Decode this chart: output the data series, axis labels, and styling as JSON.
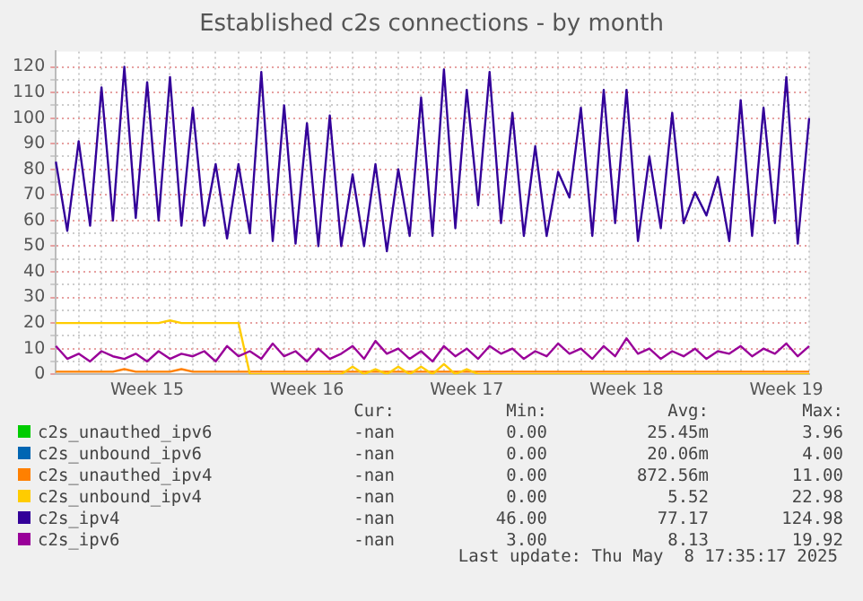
{
  "chart_data": {
    "type": "line",
    "title": "Established c2s connections - by month",
    "categories": [
      null,
      null,
      null,
      null,
      null,
      null,
      null,
      null,
      "Week 15",
      null,
      null,
      null,
      null,
      null,
      null,
      null,
      null,
      null,
      null,
      null,
      null,
      null,
      "Week 16",
      null,
      null,
      null,
      null,
      null,
      null,
      null,
      null,
      null,
      null,
      null,
      null,
      null,
      "Week 17",
      null,
      null,
      null,
      null,
      null,
      null,
      null,
      null,
      null,
      null,
      null,
      null,
      null,
      "Week 18",
      null,
      null,
      null,
      null,
      null,
      null,
      null,
      null,
      null,
      null,
      null,
      null,
      null,
      "Week 19",
      null,
      null
    ],
    "series": [
      {
        "name": "c2s_unauthed_ipv6",
        "color": "#00cc00",
        "values": [
          null,
          null,
          null,
          null,
          null,
          null,
          null,
          null,
          null,
          null,
          null,
          null,
          null,
          null,
          null,
          null,
          null,
          null,
          null,
          null,
          null,
          null,
          null,
          null,
          null,
          null,
          null,
          null,
          null,
          null,
          null,
          null,
          null,
          null,
          null,
          null,
          null,
          null,
          null,
          null,
          null,
          null,
          null,
          null,
          null,
          null,
          null,
          null,
          null,
          null,
          null,
          null,
          null,
          null,
          null,
          null,
          null,
          null,
          null,
          null,
          null,
          null,
          null,
          null,
          null,
          null,
          null
        ]
      },
      {
        "name": "c2s_unbound_ipv6",
        "color": "#0066b3",
        "values": [
          null,
          null,
          null,
          null,
          null,
          null,
          null,
          null,
          null,
          null,
          null,
          null,
          null,
          null,
          null,
          null,
          null,
          null,
          null,
          null,
          null,
          null,
          null,
          null,
          null,
          null,
          null,
          null,
          null,
          null,
          null,
          null,
          null,
          null,
          null,
          null,
          null,
          null,
          null,
          null,
          null,
          null,
          null,
          null,
          null,
          null,
          null,
          null,
          null,
          null,
          null,
          null,
          null,
          null,
          null,
          null,
          null,
          null,
          null,
          null,
          null,
          null,
          null,
          null,
          null,
          null,
          null
        ]
      },
      {
        "name": "c2s_unauthed_ipv4",
        "color": "#ff8000",
        "values": [
          1,
          1,
          1,
          1,
          1,
          1,
          2,
          1,
          1,
          1,
          1,
          2,
          1,
          1,
          1,
          1,
          1,
          1,
          1,
          1,
          1,
          1,
          1,
          1,
          1,
          1,
          1,
          1,
          1,
          1,
          1,
          1,
          1,
          1,
          1,
          1,
          1,
          1,
          1,
          1,
          1,
          1,
          1,
          1,
          1,
          1,
          1,
          1,
          1,
          1,
          1,
          1,
          1,
          1,
          1,
          1,
          1,
          1,
          1,
          1,
          1,
          1,
          1,
          1,
          1,
          1,
          1
        ]
      },
      {
        "name": "c2s_unbound_ipv4",
        "color": "#ffcc00",
        "values": [
          20,
          20,
          20,
          20,
          20,
          20,
          20,
          20,
          20,
          20,
          21,
          20,
          20,
          20,
          20,
          20,
          20,
          0,
          0,
          0,
          0,
          0,
          0,
          0,
          0,
          0,
          3,
          0,
          2,
          0,
          3,
          0,
          3,
          0,
          4,
          0,
          2,
          0,
          0,
          0,
          0,
          0,
          0,
          0,
          0,
          0,
          0,
          0,
          0,
          0,
          0,
          0,
          0,
          0,
          0,
          0,
          0,
          0,
          0,
          0,
          0,
          0,
          0,
          0,
          0,
          0,
          0
        ]
      },
      {
        "name": "c2s_ipv4",
        "color": "#330099",
        "values": [
          83,
          56,
          91,
          58,
          112,
          60,
          120,
          61,
          114,
          60,
          116,
          58,
          104,
          58,
          82,
          53,
          82,
          55,
          118,
          52,
          105,
          51,
          98,
          50,
          101,
          50,
          78,
          50,
          82,
          48,
          80,
          54,
          108,
          54,
          119,
          57,
          111,
          66,
          118,
          59,
          102,
          54,
          89,
          54,
          79,
          69,
          104,
          54,
          111,
          59,
          111,
          52,
          85,
          57,
          102,
          59,
          71,
          62,
          77,
          52,
          107,
          54,
          104,
          59,
          116,
          51,
          100
        ]
      },
      {
        "name": "c2s_ipv6",
        "color": "#990099",
        "values": [
          11,
          6,
          8,
          5,
          9,
          7,
          6,
          8,
          5,
          9,
          6,
          8,
          7,
          9,
          5,
          11,
          7,
          9,
          6,
          12,
          7,
          9,
          5,
          10,
          6,
          8,
          11,
          6,
          13,
          8,
          10,
          6,
          9,
          5,
          11,
          7,
          10,
          6,
          11,
          8,
          10,
          6,
          9,
          7,
          12,
          8,
          10,
          6,
          11,
          7,
          14,
          8,
          10,
          6,
          9,
          7,
          10,
          6,
          9,
          8,
          11,
          7,
          10,
          8,
          12,
          7,
          11
        ]
      }
    ],
    "ylim": [
      0,
      126
    ],
    "yticks": [
      0,
      {
        "value": 5,
        "label": null
      },
      10,
      {
        "value": 15,
        "label": null
      },
      20,
      {
        "value": 25,
        "label": null
      },
      30,
      {
        "value": 35,
        "label": null
      },
      40,
      {
        "value": 45,
        "label": null
      },
      50,
      {
        "value": 55,
        "label": null
      },
      60,
      {
        "value": 65,
        "label": null
      },
      70,
      {
        "value": 75,
        "label": null
      },
      80,
      {
        "value": 85,
        "label": null
      },
      90,
      {
        "value": 95,
        "label": null
      },
      100,
      {
        "value": 105,
        "label": null
      },
      110,
      {
        "value": 115,
        "label": null
      },
      120
    ],
    "grid": true,
    "legend": "bottom",
    "marker": "none",
    "line_style": "solid",
    "annotations": [
      "Cur:",
      "Min:",
      "Avg:",
      "Max:",
      "-nan",
      "0.00",
      "25.45m",
      "3.96",
      "-nan",
      "0.00",
      "20.06m",
      "4.00",
      "-nan",
      "0.00",
      "872.56m",
      "11.00",
      "-nan",
      "0.00",
      "5.52",
      "22.98",
      "-nan",
      "46.00",
      "77.17",
      "124.98",
      "-nan",
      "3.00",
      "8.13",
      "19.92",
      "Last update: Thu May  8 17:35:17 2025"
    ]
  }
}
